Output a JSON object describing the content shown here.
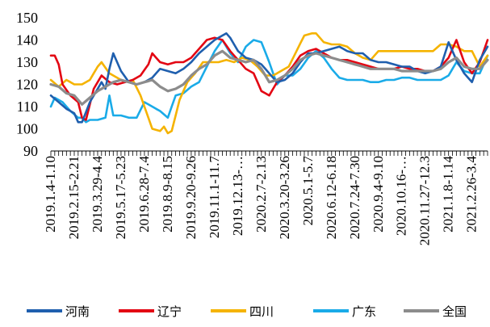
{
  "chart_data": {
    "type": "line",
    "ylim": [
      90,
      150
    ],
    "yticks": [
      90,
      100,
      110,
      120,
      130,
      140,
      150
    ],
    "x_tick_labels": [
      "2019.1.4-1.10",
      "2019.2.15-2.21",
      "2019.3.29-4.4",
      "2019.5.17-5.23",
      "2019.6.28-7.4",
      "2019.8.9-8.15",
      "2019.9.20-9.26",
      "2019.11.1-11.7",
      "2019.12.13-…",
      "2020.2.7-2.13",
      "2020.3.20-3.26",
      "2020.5.1-5.7",
      "2020.6.12-6.18",
      "2020.7.24-7.30",
      "2020.9.4-9.10",
      "2020.10.16-…",
      "2020.11.27-12.3",
      "2021.1.8-1.14",
      "2021.2.26-3.4"
    ],
    "n_points": 113,
    "series": [
      {
        "name": "河南",
        "color": "#1f5fae",
        "keys": [
          [
            0,
            115
          ],
          [
            2,
            112
          ],
          [
            4,
            109
          ],
          [
            6,
            107
          ],
          [
            7,
            103
          ],
          [
            8,
            103
          ],
          [
            10,
            112
          ],
          [
            12,
            118
          ],
          [
            13,
            121
          ],
          [
            14,
            118
          ],
          [
            15,
            127
          ],
          [
            16,
            134
          ],
          [
            18,
            126
          ],
          [
            20,
            121
          ],
          [
            22,
            120
          ],
          [
            24,
            121
          ],
          [
            26,
            123
          ],
          [
            28,
            127
          ],
          [
            30,
            126
          ],
          [
            32,
            125
          ],
          [
            34,
            127
          ],
          [
            36,
            130
          ],
          [
            38,
            134
          ],
          [
            40,
            137
          ],
          [
            42,
            140
          ],
          [
            44,
            142
          ],
          [
            45,
            143
          ],
          [
            46,
            141
          ],
          [
            48,
            135
          ],
          [
            50,
            132
          ],
          [
            52,
            131
          ],
          [
            54,
            129
          ],
          [
            56,
            125
          ],
          [
            58,
            121
          ],
          [
            60,
            122
          ],
          [
            62,
            125
          ],
          [
            64,
            130
          ],
          [
            66,
            134
          ],
          [
            68,
            134
          ],
          [
            70,
            135
          ],
          [
            72,
            136
          ],
          [
            74,
            137
          ],
          [
            76,
            135
          ],
          [
            78,
            134
          ],
          [
            80,
            134
          ],
          [
            82,
            131
          ],
          [
            84,
            130
          ],
          [
            86,
            130
          ],
          [
            88,
            129
          ],
          [
            90,
            128
          ],
          [
            92,
            128
          ],
          [
            94,
            126
          ],
          [
            96,
            125
          ],
          [
            98,
            126
          ],
          [
            100,
            128
          ],
          [
            102,
            139
          ],
          [
            104,
            131
          ],
          [
            106,
            125
          ],
          [
            108,
            121
          ],
          [
            110,
            131
          ],
          [
            112,
            137
          ]
        ]
      },
      {
        "name": "辽宁",
        "color": "#e30613",
        "keys": [
          [
            0,
            133
          ],
          [
            1,
            133
          ],
          [
            2,
            129
          ],
          [
            3,
            120
          ],
          [
            5,
            115
          ],
          [
            7,
            112
          ],
          [
            8,
            105
          ],
          [
            9,
            104
          ],
          [
            11,
            118
          ],
          [
            13,
            124
          ],
          [
            15,
            121
          ],
          [
            17,
            120
          ],
          [
            19,
            121
          ],
          [
            21,
            122
          ],
          [
            23,
            124
          ],
          [
            25,
            129
          ],
          [
            26,
            134
          ],
          [
            28,
            130
          ],
          [
            30,
            129
          ],
          [
            32,
            130
          ],
          [
            34,
            130
          ],
          [
            36,
            132
          ],
          [
            38,
            136
          ],
          [
            40,
            140
          ],
          [
            42,
            141
          ],
          [
            44,
            140
          ],
          [
            46,
            135
          ],
          [
            48,
            131
          ],
          [
            50,
            127
          ],
          [
            52,
            125
          ],
          [
            54,
            117
          ],
          [
            56,
            115
          ],
          [
            58,
            121
          ],
          [
            60,
            124
          ],
          [
            62,
            128
          ],
          [
            64,
            133
          ],
          [
            66,
            135
          ],
          [
            68,
            136
          ],
          [
            70,
            134
          ],
          [
            72,
            132
          ],
          [
            74,
            131
          ],
          [
            76,
            131
          ],
          [
            78,
            130
          ],
          [
            80,
            129
          ],
          [
            82,
            128
          ],
          [
            84,
            127
          ],
          [
            86,
            127
          ],
          [
            88,
            127
          ],
          [
            90,
            128
          ],
          [
            92,
            127
          ],
          [
            94,
            127
          ],
          [
            96,
            126
          ],
          [
            98,
            126
          ],
          [
            100,
            128
          ],
          [
            102,
            132
          ],
          [
            104,
            140
          ],
          [
            106,
            130
          ],
          [
            108,
            125
          ],
          [
            110,
            130
          ],
          [
            112,
            140
          ]
        ]
      },
      {
        "name": "四川",
        "color": "#f5b300",
        "keys": [
          [
            0,
            122
          ],
          [
            2,
            119
          ],
          [
            4,
            122
          ],
          [
            6,
            120
          ],
          [
            8,
            120
          ],
          [
            10,
            122
          ],
          [
            12,
            128
          ],
          [
            13,
            130
          ],
          [
            15,
            125
          ],
          [
            17,
            123
          ],
          [
            19,
            121
          ],
          [
            21,
            122
          ],
          [
            23,
            115
          ],
          [
            25,
            105
          ],
          [
            26,
            100
          ],
          [
            28,
            99
          ],
          [
            29,
            101
          ],
          [
            30,
            98
          ],
          [
            31,
            99
          ],
          [
            33,
            113
          ],
          [
            35,
            121
          ],
          [
            37,
            125
          ],
          [
            39,
            130
          ],
          [
            41,
            130
          ],
          [
            43,
            130
          ],
          [
            45,
            131
          ],
          [
            47,
            130
          ],
          [
            49,
            132
          ],
          [
            51,
            131
          ],
          [
            53,
            128
          ],
          [
            55,
            124
          ],
          [
            57,
            124
          ],
          [
            59,
            126
          ],
          [
            61,
            128
          ],
          [
            63,
            135
          ],
          [
            65,
            142
          ],
          [
            67,
            143
          ],
          [
            68,
            143
          ],
          [
            70,
            139
          ],
          [
            72,
            138
          ],
          [
            74,
            138
          ],
          [
            76,
            137
          ],
          [
            78,
            134
          ],
          [
            80,
            132
          ],
          [
            82,
            131
          ],
          [
            84,
            135
          ],
          [
            86,
            135
          ],
          [
            88,
            135
          ],
          [
            90,
            135
          ],
          [
            92,
            135
          ],
          [
            94,
            135
          ],
          [
            96,
            135
          ],
          [
            98,
            135
          ],
          [
            100,
            138
          ],
          [
            102,
            138
          ],
          [
            104,
            137
          ],
          [
            106,
            135
          ],
          [
            108,
            135
          ],
          [
            110,
            128
          ],
          [
            112,
            133
          ]
        ]
      },
      {
        "name": "广东",
        "color": "#1aabe8",
        "keys": [
          [
            0,
            110
          ],
          [
            1,
            114
          ],
          [
            3,
            112
          ],
          [
            5,
            108
          ],
          [
            7,
            105
          ],
          [
            8,
            105
          ],
          [
            9,
            103
          ],
          [
            10,
            104
          ],
          [
            12,
            104
          ],
          [
            14,
            105
          ],
          [
            15,
            115
          ],
          [
            16,
            106
          ],
          [
            18,
            106
          ],
          [
            20,
            105
          ],
          [
            22,
            105
          ],
          [
            24,
            112
          ],
          [
            26,
            110
          ],
          [
            28,
            108
          ],
          [
            30,
            105
          ],
          [
            32,
            115
          ],
          [
            34,
            116
          ],
          [
            36,
            119
          ],
          [
            38,
            121
          ],
          [
            40,
            128
          ],
          [
            42,
            135
          ],
          [
            44,
            140
          ],
          [
            46,
            134
          ],
          [
            48,
            130
          ],
          [
            50,
            137
          ],
          [
            52,
            140
          ],
          [
            54,
            139
          ],
          [
            56,
            130
          ],
          [
            58,
            120
          ],
          [
            60,
            124
          ],
          [
            62,
            124
          ],
          [
            64,
            127
          ],
          [
            66,
            132
          ],
          [
            68,
            135
          ],
          [
            70,
            132
          ],
          [
            72,
            127
          ],
          [
            74,
            123
          ],
          [
            76,
            122
          ],
          [
            78,
            122
          ],
          [
            80,
            122
          ],
          [
            82,
            121
          ],
          [
            84,
            121
          ],
          [
            86,
            122
          ],
          [
            88,
            122
          ],
          [
            90,
            123
          ],
          [
            92,
            123
          ],
          [
            94,
            122
          ],
          [
            96,
            122
          ],
          [
            98,
            122
          ],
          [
            100,
            122
          ],
          [
            102,
            124
          ],
          [
            104,
            130
          ],
          [
            106,
            126
          ],
          [
            108,
            125
          ],
          [
            110,
            125
          ],
          [
            112,
            133
          ]
        ]
      },
      {
        "name": "全国",
        "color": "#8c8c8c",
        "keys": [
          [
            0,
            120
          ],
          [
            2,
            119
          ],
          [
            4,
            116
          ],
          [
            6,
            115
          ],
          [
            8,
            111
          ],
          [
            10,
            114
          ],
          [
            12,
            117
          ],
          [
            14,
            119
          ],
          [
            16,
            121
          ],
          [
            18,
            122
          ],
          [
            20,
            121
          ],
          [
            22,
            120
          ],
          [
            24,
            121
          ],
          [
            26,
            122
          ],
          [
            28,
            119
          ],
          [
            30,
            117
          ],
          [
            32,
            118
          ],
          [
            34,
            120
          ],
          [
            36,
            124
          ],
          [
            38,
            127
          ],
          [
            40,
            129
          ],
          [
            42,
            133
          ],
          [
            44,
            135
          ],
          [
            46,
            132
          ],
          [
            48,
            131
          ],
          [
            50,
            130
          ],
          [
            52,
            131
          ],
          [
            54,
            127
          ],
          [
            56,
            121
          ],
          [
            58,
            122
          ],
          [
            60,
            124
          ],
          [
            62,
            127
          ],
          [
            64,
            131
          ],
          [
            66,
            133
          ],
          [
            68,
            134
          ],
          [
            70,
            133
          ],
          [
            72,
            132
          ],
          [
            74,
            131
          ],
          [
            76,
            130
          ],
          [
            78,
            129
          ],
          [
            80,
            128
          ],
          [
            82,
            127
          ],
          [
            84,
            127
          ],
          [
            86,
            127
          ],
          [
            88,
            127
          ],
          [
            90,
            126
          ],
          [
            92,
            126
          ],
          [
            94,
            126
          ],
          [
            96,
            126
          ],
          [
            98,
            126
          ],
          [
            100,
            127
          ],
          [
            102,
            130
          ],
          [
            104,
            132
          ],
          [
            106,
            128
          ],
          [
            108,
            127
          ],
          [
            110,
            127
          ],
          [
            112,
            131
          ]
        ]
      }
    ]
  }
}
